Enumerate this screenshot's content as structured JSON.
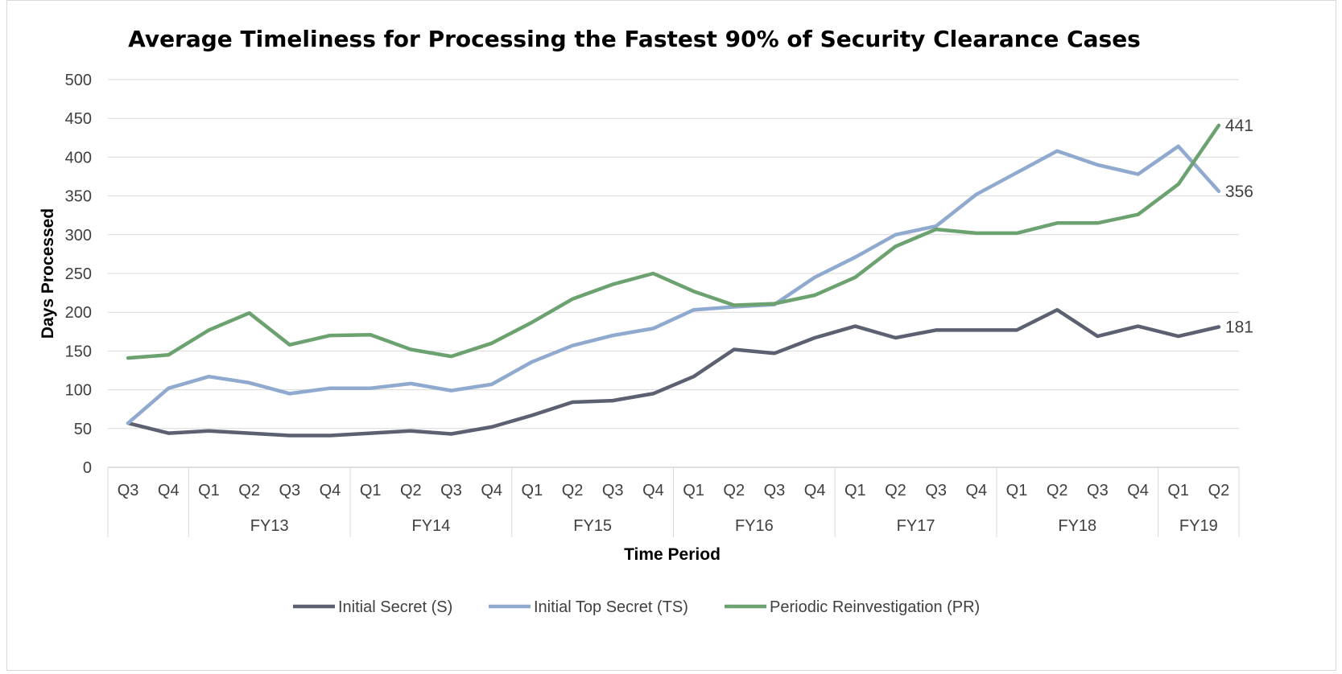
{
  "chart_data": {
    "type": "line",
    "title": "Average Timeliness for Processing the Fastest 90% of Security Clearance Cases",
    "xlabel": "Time Period",
    "ylabel": "Days Processed",
    "ylim": [
      0,
      500
    ],
    "yticks": [
      0,
      50,
      100,
      150,
      200,
      250,
      300,
      350,
      400,
      450,
      500
    ],
    "grid": true,
    "legend_position": "bottom",
    "categories": [
      "Q3",
      "Q4",
      "Q1",
      "Q2",
      "Q3",
      "Q4",
      "Q1",
      "Q2",
      "Q3",
      "Q4",
      "Q1",
      "Q2",
      "Q3",
      "Q4",
      "Q1",
      "Q2",
      "Q3",
      "Q4",
      "Q1",
      "Q2",
      "Q3",
      "Q4",
      "Q1",
      "Q2",
      "Q3",
      "Q4",
      "Q1",
      "Q2"
    ],
    "groups": [
      {
        "label": "",
        "count": 2
      },
      {
        "label": "FY13",
        "count": 4
      },
      {
        "label": "FY14",
        "count": 4
      },
      {
        "label": "FY15",
        "count": 4
      },
      {
        "label": "FY16",
        "count": 4
      },
      {
        "label": "FY17",
        "count": 4
      },
      {
        "label": "FY18",
        "count": 4
      },
      {
        "label": "FY19",
        "count": 2
      }
    ],
    "series": [
      {
        "name": "Initial Secret (S)",
        "color": "#5b6170",
        "values": [
          57,
          44,
          47,
          44,
          41,
          41,
          44,
          47,
          43,
          52,
          67,
          84,
          86,
          95,
          117,
          152,
          147,
          167,
          182,
          167,
          177,
          177,
          177,
          203,
          169,
          182,
          169,
          181
        ],
        "end_label": "181"
      },
      {
        "name": "Initial Top Secret (TS)",
        "color": "#8fa9cf",
        "values": [
          57,
          102,
          117,
          109,
          95,
          102,
          102,
          108,
          99,
          107,
          136,
          157,
          170,
          179,
          203,
          207,
          210,
          245,
          271,
          300,
          311,
          352,
          380,
          408,
          390,
          378,
          414,
          356
        ],
        "end_label": "356"
      },
      {
        "name": "Periodic Reinvestigation (PR)",
        "color": "#6ca170",
        "values": [
          141,
          145,
          177,
          199,
          158,
          170,
          171,
          152,
          143,
          160,
          187,
          217,
          236,
          250,
          227,
          209,
          211,
          222,
          245,
          285,
          307,
          302,
          302,
          315,
          315,
          326,
          365,
          441
        ],
        "end_label": "441"
      }
    ]
  }
}
